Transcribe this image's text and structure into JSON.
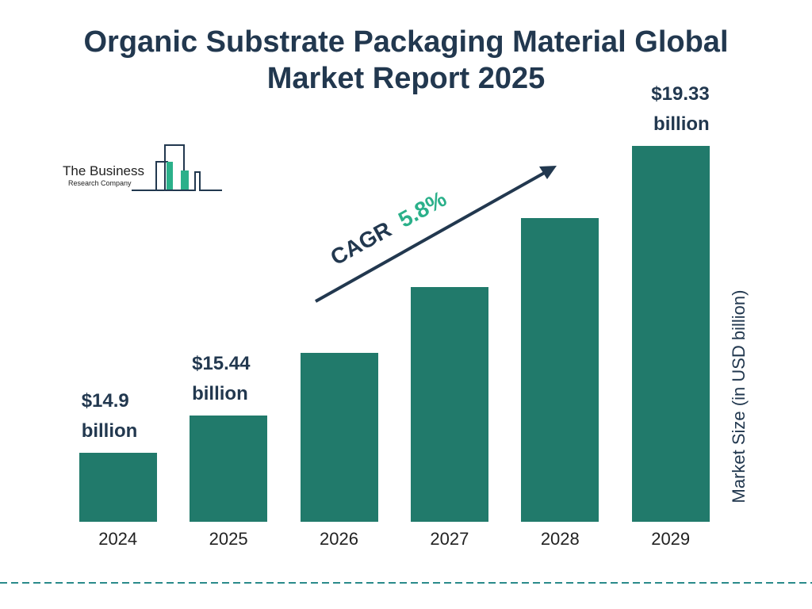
{
  "chart_data": {
    "type": "bar",
    "title": "Organic Substrate Packaging Material Global Market Report 2025",
    "categories": [
      "2024",
      "2025",
      "2026",
      "2027",
      "2028",
      "2029"
    ],
    "values": [
      14.9,
      15.44,
      16.34,
      17.29,
      18.29,
      19.33
    ],
    "value_labels": [
      "$14.9 billion",
      "$15.44 billion",
      null,
      null,
      null,
      "$19.33 billion"
    ],
    "color": "#217a6b",
    "ylim": [
      13.9,
      19.33
    ],
    "y_axis_label": "Market Size (in USD billion)",
    "annotations": [
      "CAGR",
      "5.8%"
    ],
    "logo": [
      "The Business",
      "Research Company"
    ]
  }
}
